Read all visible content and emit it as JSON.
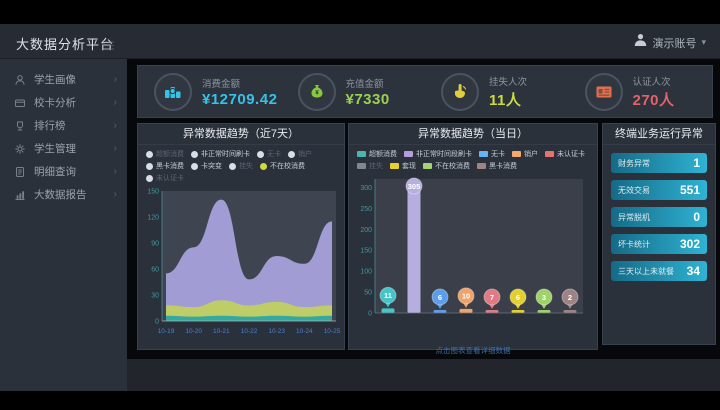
{
  "header": {
    "title": "大数据分析平台",
    "user_name": "演示账号",
    "caret": "▾"
  },
  "sidebar": {
    "chevron": "›",
    "items": [
      {
        "label": "学生画像",
        "icon": "user-icon"
      },
      {
        "label": "校卡分析",
        "icon": "card-icon"
      },
      {
        "label": "排行榜",
        "icon": "trophy-icon"
      },
      {
        "label": "学生管理",
        "icon": "gear-icon"
      },
      {
        "label": "明细查询",
        "icon": "doc-icon"
      },
      {
        "label": "大数据报告",
        "icon": "chart-icon"
      }
    ]
  },
  "kpis": [
    {
      "label": "消费金额",
      "value": "¥12709.42",
      "value_color": "#35c3e8",
      "icon": "coins-icon",
      "icon_color": "#35c3e8"
    },
    {
      "label": "充值金额",
      "value": "¥7330",
      "value_color": "#9ad150",
      "icon": "moneybag-icon",
      "icon_color": "#86c93d"
    },
    {
      "label": "挂失人次",
      "value": "11人",
      "value_color": "#cfdd3a",
      "icon": "hand-click-icon",
      "icon_color": "#e3cd3f"
    },
    {
      "label": "认证人次",
      "value": "270人",
      "value_color": "#e2646a",
      "icon": "idcard-icon",
      "icon_color": "#e2704f"
    }
  ],
  "left_panel": {
    "legend_rows": [
      [
        {
          "label": "超额消费",
          "dot": "#d9dee4",
          "muted": true
        },
        {
          "label": "非正常时间刷卡",
          "dot": "#d9dee4",
          "muted": false
        },
        {
          "label": "无卡",
          "dot": "#d9dee4",
          "muted": true
        },
        {
          "label": "销户",
          "dot": "#d9dee4",
          "muted": true
        }
      ],
      [
        {
          "label": "黑卡消费",
          "dot": "#d9dee4",
          "muted": false
        },
        {
          "label": "卡突变",
          "dot": "#d9dee4",
          "muted": false
        },
        {
          "label": "挂失",
          "dot": "#d9dee4",
          "muted": true
        },
        {
          "label": "不在校消费",
          "dot": "#cddc39",
          "muted": false
        }
      ],
      [
        {
          "label": "未认证卡",
          "dot": "#d9dee4",
          "muted": true
        }
      ]
    ]
  },
  "right_panel": {
    "legend_rows": [
      [
        {
          "label": "超额消费",
          "swatch": "#4db6ac",
          "muted": false
        },
        {
          "label": "非正常时间段刷卡",
          "swatch": "#b39ddb",
          "muted": false
        },
        {
          "label": "无卡",
          "swatch": "#64b5f6",
          "muted": false
        },
        {
          "label": "销户",
          "swatch": "#f3a96d",
          "muted": false
        },
        {
          "label": "未认证卡",
          "swatch": "#e57373",
          "muted": false
        }
      ],
      [
        {
          "label": "挂失",
          "swatch": "#7f878f",
          "muted": true
        },
        {
          "label": "套现",
          "swatch": "#e6d22f",
          "muted": false
        },
        {
          "label": "不在校消费",
          "swatch": "#a5d373",
          "muted": false
        },
        {
          "label": "黑卡消费",
          "swatch": "#9d8585",
          "muted": false
        }
      ]
    ],
    "footer": "点击图表查看详细数据"
  },
  "terminal_panel": {
    "title": "终端业务运行异常",
    "items": [
      {
        "label": "财务异常",
        "value": "1"
      },
      {
        "label": "无效交易",
        "value": "551"
      },
      {
        "label": "异常脱机",
        "value": "0"
      },
      {
        "label": "坏卡统计",
        "value": "302"
      },
      {
        "label": "三天以上未就餐",
        "value": "34"
      }
    ]
  },
  "chart_data": [
    {
      "type": "area",
      "title": "异常数据趋势（近7天）",
      "categories": [
        "10-19",
        "10-20",
        "10-21",
        "10-22",
        "10-23",
        "10-24",
        "10-25"
      ],
      "series": [
        {
          "name": "非正常时间刷卡",
          "color": "#a6a0d8",
          "values": [
            55,
            85,
            140,
            48,
            75,
            66,
            115
          ]
        },
        {
          "name": "不在校消费",
          "color": "#bfcf62",
          "values": [
            18,
            16,
            24,
            18,
            22,
            16,
            18
          ]
        },
        {
          "name": "超额消费",
          "color": "#2fa8a0",
          "values": [
            6,
            5,
            6,
            5,
            6,
            5,
            6
          ]
        }
      ],
      "ylim": [
        0,
        150
      ],
      "yticks": [
        0,
        30,
        60,
        90,
        120,
        150
      ],
      "grid": false,
      "legend_position": "top"
    },
    {
      "type": "bar",
      "title": "异常数据趋势（当日）",
      "categories": [
        "超额消费",
        "非正常时间段刷卡",
        "无卡",
        "销户",
        "未认证卡",
        "套现",
        "不在校消费",
        "黑卡消费"
      ],
      "values": [
        11,
        305,
        6,
        10,
        7,
        6,
        3,
        2
      ],
      "colors": [
        "#45c5c8",
        "#b7aee0",
        "#5c9ded",
        "#f0a26b",
        "#e07b84",
        "#e3cf2e",
        "#9ed36a",
        "#9d8383"
      ],
      "ylim": [
        0,
        320
      ],
      "yticks": [
        0,
        50,
        100,
        150,
        200,
        250,
        300
      ],
      "grid": false,
      "legend_position": "top"
    }
  ]
}
